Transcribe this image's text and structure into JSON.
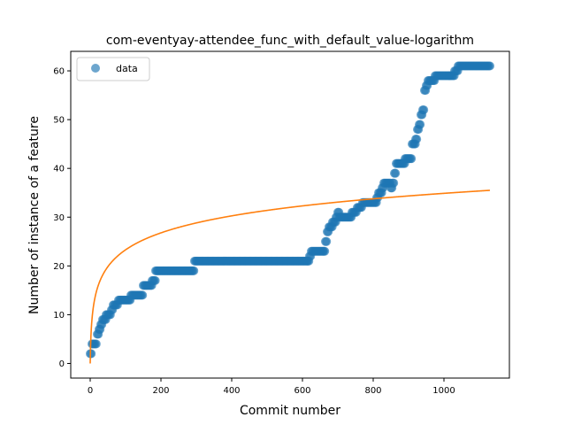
{
  "chart_data": {
    "type": "scatter",
    "title": "com-eventyay-attendee_func_with_default_value-logarithm",
    "xlabel": "Commit number",
    "ylabel": "Number of instance of a feature",
    "xlim": [
      -55,
      1185
    ],
    "ylim": [
      -3,
      64
    ],
    "xticks": [
      0,
      200,
      400,
      600,
      800,
      1000
    ],
    "yticks": [
      0,
      10,
      20,
      30,
      40,
      50,
      60
    ],
    "grid": false,
    "legend": {
      "placement": "top-left",
      "entries": [
        "data"
      ]
    },
    "colors": {
      "data": "#1f77b4",
      "fit": "#ff7f0e"
    },
    "series": [
      {
        "name": "data",
        "kind": "scatter",
        "steps": [
          [
            0,
            2
          ],
          [
            5,
            4
          ],
          [
            20,
            6
          ],
          [
            25,
            7
          ],
          [
            30,
            8
          ],
          [
            35,
            9
          ],
          [
            45,
            10
          ],
          [
            60,
            11
          ],
          [
            65,
            12
          ],
          [
            80,
            13
          ],
          [
            115,
            14
          ],
          [
            150,
            16
          ],
          [
            175,
            17
          ],
          [
            185,
            19
          ],
          [
            295,
            21
          ],
          [
            615,
            21
          ],
          [
            620,
            22
          ],
          [
            625,
            23
          ],
          [
            660,
            23
          ],
          [
            665,
            25
          ],
          [
            670,
            27
          ],
          [
            675,
            28
          ],
          [
            685,
            29
          ],
          [
            695,
            30
          ],
          [
            700,
            31
          ],
          [
            705,
            30
          ],
          [
            740,
            31
          ],
          [
            755,
            32
          ],
          [
            770,
            33
          ],
          [
            800,
            33
          ],
          [
            810,
            34
          ],
          [
            815,
            35
          ],
          [
            825,
            36
          ],
          [
            830,
            37
          ],
          [
            850,
            36
          ],
          [
            855,
            37
          ],
          [
            860,
            39
          ],
          [
            865,
            41
          ],
          [
            890,
            42
          ],
          [
            910,
            45
          ],
          [
            920,
            46
          ],
          [
            925,
            48
          ],
          [
            930,
            49
          ],
          [
            935,
            51
          ],
          [
            940,
            52
          ],
          [
            945,
            56
          ],
          [
            950,
            57
          ],
          [
            955,
            58
          ],
          [
            975,
            59
          ],
          [
            1030,
            60
          ],
          [
            1040,
            61
          ],
          [
            1130,
            61
          ]
        ]
      },
      {
        "name": "fit",
        "kind": "line",
        "function": "logarithm",
        "x_range": [
          0,
          1130
        ],
        "y_at_end": 35.5,
        "y_at_start": 0
      }
    ]
  }
}
